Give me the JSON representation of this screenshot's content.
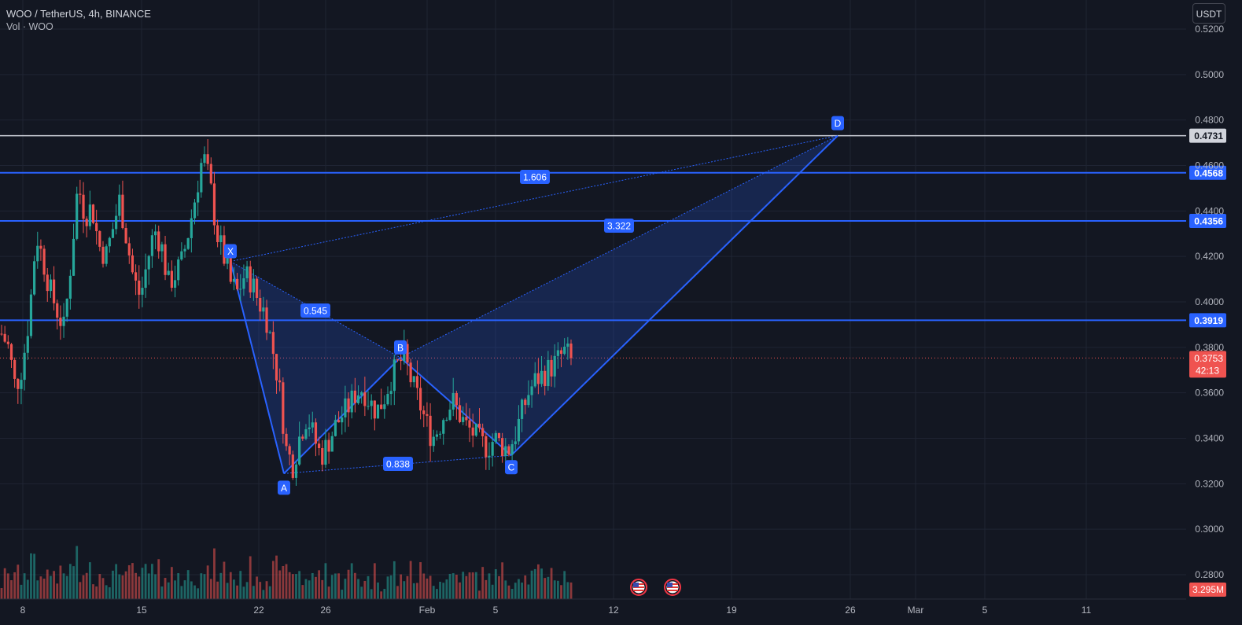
{
  "legend": {
    "symbol": "WOO / TetherUS, 4h, BINANCE",
    "volume": "Vol · WOO"
  },
  "currency_button": "USDT",
  "colors": {
    "background": "#131722",
    "grid": "#1f2433",
    "up": "#26a69a",
    "down": "#ef5350",
    "pattern": "#2962ff",
    "level_line": "#2962ff",
    "white_level": "#d1d4dc"
  },
  "chart_data": {
    "type": "candlestick",
    "y_axis": {
      "min": 0.277,
      "max": 0.528,
      "ticks": [
        "0.5200",
        "0.5000",
        "0.4800",
        "0.4600",
        "0.4400",
        "0.4200",
        "0.4000",
        "0.3800",
        "0.3600",
        "0.3400",
        "0.3200",
        "0.3000",
        "0.2800"
      ]
    },
    "x_axis": {
      "ticks": [
        "8",
        "15",
        "22",
        "26",
        "Feb",
        "5",
        "12",
        "19",
        "26",
        "Mar",
        "5",
        "11"
      ]
    },
    "horizontal_levels": [
      {
        "value": 0.4731,
        "label": "0.4731",
        "style": "white"
      },
      {
        "value": 0.4568,
        "label": "0.4568",
        "style": "blue"
      },
      {
        "value": 0.4356,
        "label": "0.4356",
        "style": "blue"
      },
      {
        "value": 0.3919,
        "label": "0.3919",
        "style": "blue"
      }
    ],
    "last_price": {
      "value": 0.3753,
      "label": "0.3753",
      "countdown": "42:13"
    },
    "last_volume": "3.295M",
    "xabcd_pattern": {
      "points": [
        {
          "label": "X",
          "price": 0.4178
        },
        {
          "label": "A",
          "price": 0.3245
        },
        {
          "label": "B",
          "price": 0.3755
        },
        {
          "label": "C",
          "price": 0.3325
        },
        {
          "label": "D",
          "price": 0.4731
        }
      ],
      "ratios": [
        {
          "between": "XB",
          "value": "0.545"
        },
        {
          "between": "AC",
          "value": "0.838"
        },
        {
          "between": "BD",
          "value": "3.322"
        },
        {
          "between": "XD",
          "value": "1.606"
        }
      ]
    },
    "event_icons": [
      "us-flag-icon",
      "us-flag-icon"
    ],
    "candles_approx_path": [
      0.386,
      0.38,
      0.362,
      0.372,
      0.394,
      0.43,
      0.418,
      0.405,
      0.396,
      0.388,
      0.418,
      0.452,
      0.438,
      0.442,
      0.425,
      0.42,
      0.432,
      0.445,
      0.428,
      0.41,
      0.402,
      0.418,
      0.432,
      0.425,
      0.408,
      0.412,
      0.418,
      0.432,
      0.448,
      0.465,
      0.452,
      0.43,
      0.42,
      0.408,
      0.404,
      0.412,
      0.409,
      0.4,
      0.395,
      0.38,
      0.362,
      0.335,
      0.328,
      0.342,
      0.35,
      0.34,
      0.332,
      0.338,
      0.345,
      0.35,
      0.354,
      0.36,
      0.362,
      0.356,
      0.352,
      0.357,
      0.366,
      0.372,
      0.376,
      0.365,
      0.357,
      0.348,
      0.34,
      0.345,
      0.353,
      0.356,
      0.35,
      0.345,
      0.342,
      0.338,
      0.336,
      0.34,
      0.337,
      0.335,
      0.342,
      0.352,
      0.361,
      0.366,
      0.368,
      0.371,
      0.374,
      0.378,
      0.3753
    ]
  }
}
